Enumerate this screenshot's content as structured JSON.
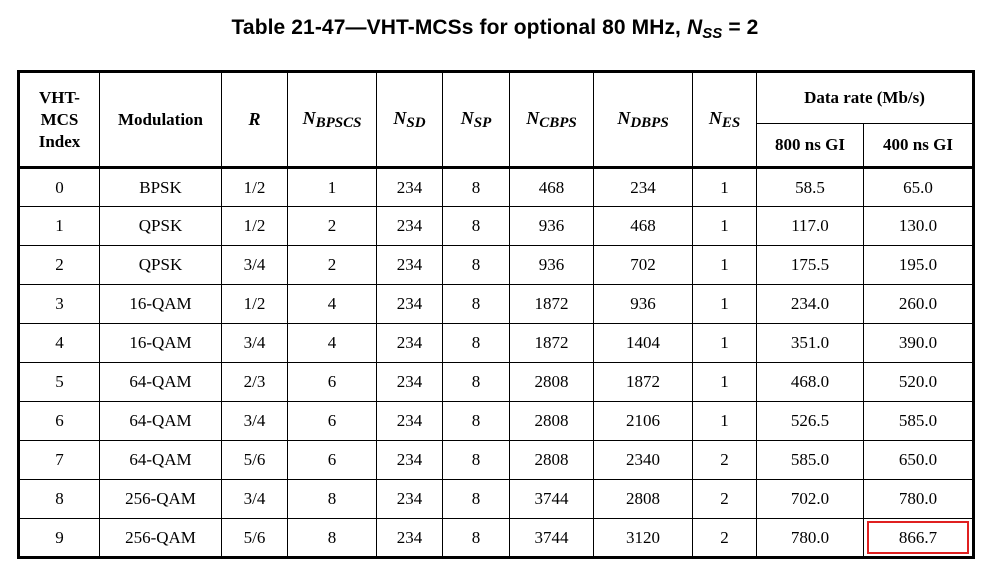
{
  "caption": {
    "prefix": "Table 21-47—VHT-MCSs for optional 80 MHz, ",
    "nss_base": "N",
    "nss_sub": "SS",
    "suffix": " = 2"
  },
  "table": {
    "headers": {
      "index_line1": "VHT-",
      "index_line2": "MCS",
      "index_line3": "Index",
      "modulation": "Modulation",
      "r": "R",
      "nbpscs": {
        "base": "N",
        "sub": "BPSCS"
      },
      "nsd": {
        "base": "N",
        "sub": "SD"
      },
      "nsp": {
        "base": "N",
        "sub": "SP"
      },
      "ncbps": {
        "base": "N",
        "sub": "CBPS"
      },
      "ndbps": {
        "base": "N",
        "sub": "DBPS"
      },
      "nes": {
        "base": "N",
        "sub": "ES"
      },
      "data_rate": "Data rate (Mb/s)",
      "gi800": "800 ns GI",
      "gi400": "400 ns GI"
    },
    "rows": [
      {
        "idx": "0",
        "mod": "BPSK",
        "r": "1/2",
        "nbpscs": "1",
        "nsd": "234",
        "nsp": "8",
        "ncbps": "468",
        "ndbps": "234",
        "nes": "1",
        "gi800": "58.5",
        "gi400": "65.0"
      },
      {
        "idx": "1",
        "mod": "QPSK",
        "r": "1/2",
        "nbpscs": "2",
        "nsd": "234",
        "nsp": "8",
        "ncbps": "936",
        "ndbps": "468",
        "nes": "1",
        "gi800": "117.0",
        "gi400": "130.0"
      },
      {
        "idx": "2",
        "mod": "QPSK",
        "r": "3/4",
        "nbpscs": "2",
        "nsd": "234",
        "nsp": "8",
        "ncbps": "936",
        "ndbps": "702",
        "nes": "1",
        "gi800": "175.5",
        "gi400": "195.0"
      },
      {
        "idx": "3",
        "mod": "16-QAM",
        "r": "1/2",
        "nbpscs": "4",
        "nsd": "234",
        "nsp": "8",
        "ncbps": "1872",
        "ndbps": "936",
        "nes": "1",
        "gi800": "234.0",
        "gi400": "260.0"
      },
      {
        "idx": "4",
        "mod": "16-QAM",
        "r": "3/4",
        "nbpscs": "4",
        "nsd": "234",
        "nsp": "8",
        "ncbps": "1872",
        "ndbps": "1404",
        "nes": "1",
        "gi800": "351.0",
        "gi400": "390.0"
      },
      {
        "idx": "5",
        "mod": "64-QAM",
        "r": "2/3",
        "nbpscs": "6",
        "nsd": "234",
        "nsp": "8",
        "ncbps": "2808",
        "ndbps": "1872",
        "nes": "1",
        "gi800": "468.0",
        "gi400": "520.0"
      },
      {
        "idx": "6",
        "mod": "64-QAM",
        "r": "3/4",
        "nbpscs": "6",
        "nsd": "234",
        "nsp": "8",
        "ncbps": "2808",
        "ndbps": "2106",
        "nes": "1",
        "gi800": "526.5",
        "gi400": "585.0"
      },
      {
        "idx": "7",
        "mod": "64-QAM",
        "r": "5/6",
        "nbpscs": "6",
        "nsd": "234",
        "nsp": "8",
        "ncbps": "2808",
        "ndbps": "2340",
        "nes": "2",
        "gi800": "585.0",
        "gi400": "650.0"
      },
      {
        "idx": "8",
        "mod": "256-QAM",
        "r": "3/4",
        "nbpscs": "8",
        "nsd": "234",
        "nsp": "8",
        "ncbps": "3744",
        "ndbps": "2808",
        "nes": "2",
        "gi800": "702.0",
        "gi400": "780.0"
      },
      {
        "idx": "9",
        "mod": "256-QAM",
        "r": "5/6",
        "nbpscs": "8",
        "nsd": "234",
        "nsp": "8",
        "ncbps": "3744",
        "ndbps": "3120",
        "nes": "2",
        "gi800": "780.0",
        "gi400": "866.7"
      }
    ],
    "highlight": {
      "row": 9,
      "column": "gi400",
      "color": "#e02020"
    }
  }
}
